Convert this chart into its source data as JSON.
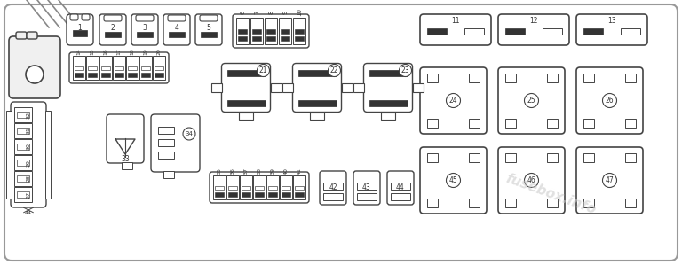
{
  "bg_color": "#ffffff",
  "line_color": "#444444",
  "dark_fill": "#333333",
  "light_fill": "#f8f8f8",
  "watermark": "fusebox.info",
  "watermark_color": "#cccccc",
  "figsize": [
    7.68,
    2.99
  ],
  "dpi": 100
}
